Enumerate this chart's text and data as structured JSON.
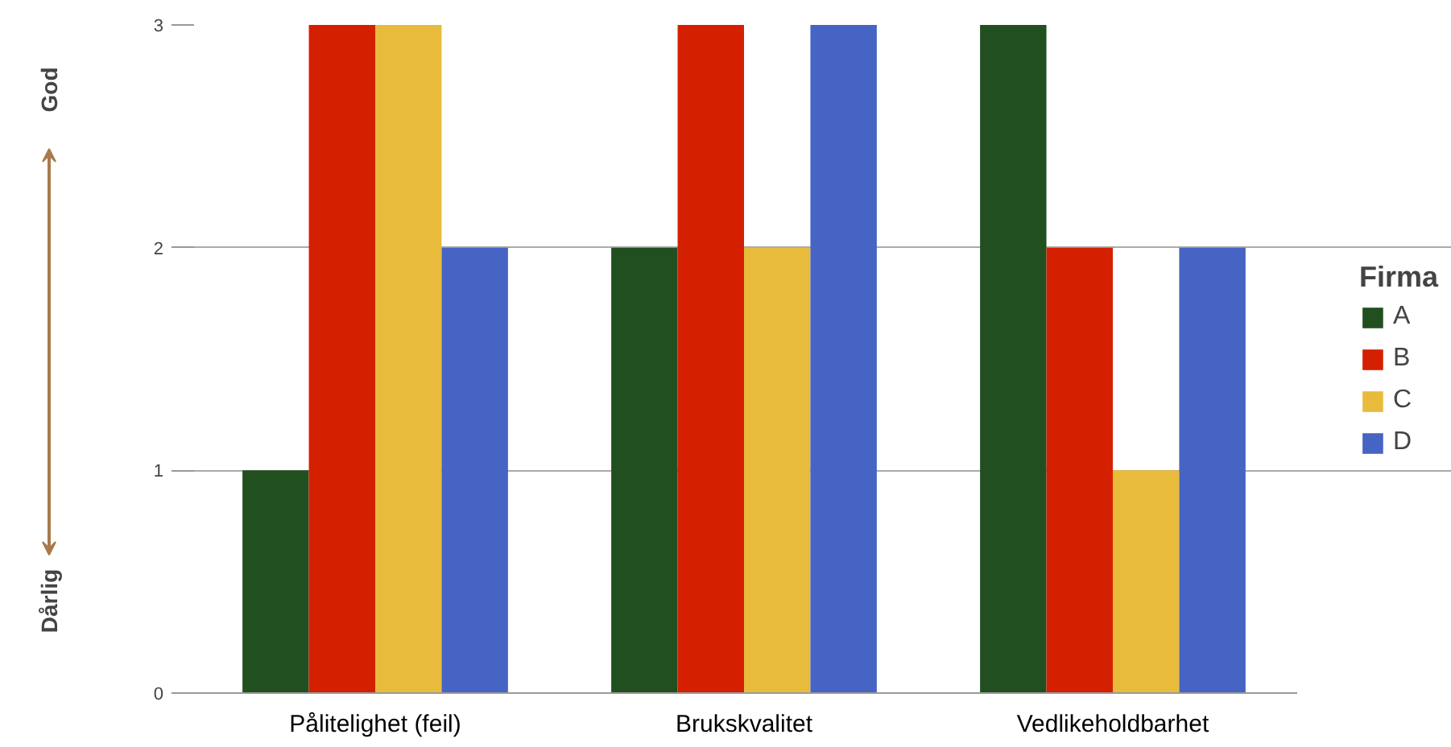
{
  "chart_data": {
    "type": "bar",
    "categories": [
      "Pålitelighet (feil)",
      "Brukskvalitet",
      "Vedlikeholdbarhet"
    ],
    "series": [
      {
        "name": "A",
        "color": "#214f20",
        "values": [
          1,
          2,
          3
        ]
      },
      {
        "name": "B",
        "color": "#d42000",
        "values": [
          3,
          3,
          2
        ]
      },
      {
        "name": "C",
        "color": "#e8bb3c",
        "values": [
          3,
          2,
          1
        ]
      },
      {
        "name": "D",
        "color": "#4564c3",
        "values": [
          2,
          3,
          2
        ]
      }
    ],
    "ylim": [
      0,
      3
    ],
    "yticks": [
      0,
      1,
      2,
      3
    ],
    "grid": "y",
    "legend": "right",
    "legend_title": "Firma",
    "annotations": [
      "God",
      "Dårlig"
    ]
  }
}
